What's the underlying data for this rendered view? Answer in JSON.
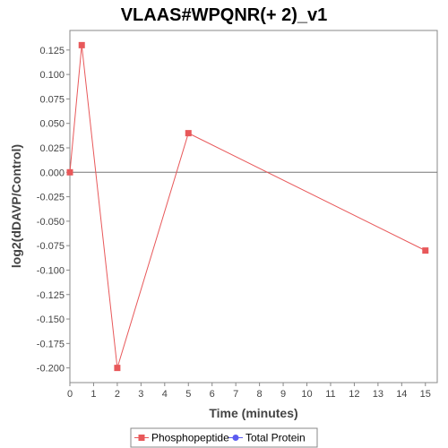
{
  "chart_data": {
    "type": "line",
    "title": "VLAAS#WPQNR(+ 2)_v1",
    "xlabel": "Time (minutes)",
    "ylabel": "log2(dDAVP/Control)",
    "xlim": [
      0,
      15.5
    ],
    "ylim": [
      -0.215,
      0.145
    ],
    "x_ticks": [
      0,
      1,
      2,
      3,
      4,
      5,
      6,
      7,
      8,
      9,
      10,
      11,
      12,
      13,
      14,
      15
    ],
    "y_ticks": [
      0.125,
      0.1,
      0.075,
      0.05,
      0.025,
      0.0,
      -0.025,
      -0.05,
      -0.075,
      -0.1,
      -0.125,
      -0.15,
      -0.175,
      -0.2
    ],
    "y_tick_labels": [
      "0.125",
      "0.100",
      "0.075",
      "0.050",
      "0.025",
      "0.000",
      "-0.025",
      "-0.050",
      "-0.075",
      "-0.100",
      "-0.125",
      "-0.150",
      "-0.175",
      "-0.200"
    ],
    "zero_line": true,
    "grid": false,
    "legend_position": "bottom",
    "series": [
      {
        "name": "Phosphopeptide",
        "color": "#e8585a",
        "marker": "square",
        "x": [
          0,
          0.5,
          2,
          5,
          15
        ],
        "y": [
          0.0,
          0.13,
          -0.2,
          0.04,
          -0.08
        ]
      },
      {
        "name": "Total Protein",
        "color": "#5b5bf0",
        "marker": "circle",
        "x": [],
        "y": []
      }
    ]
  }
}
